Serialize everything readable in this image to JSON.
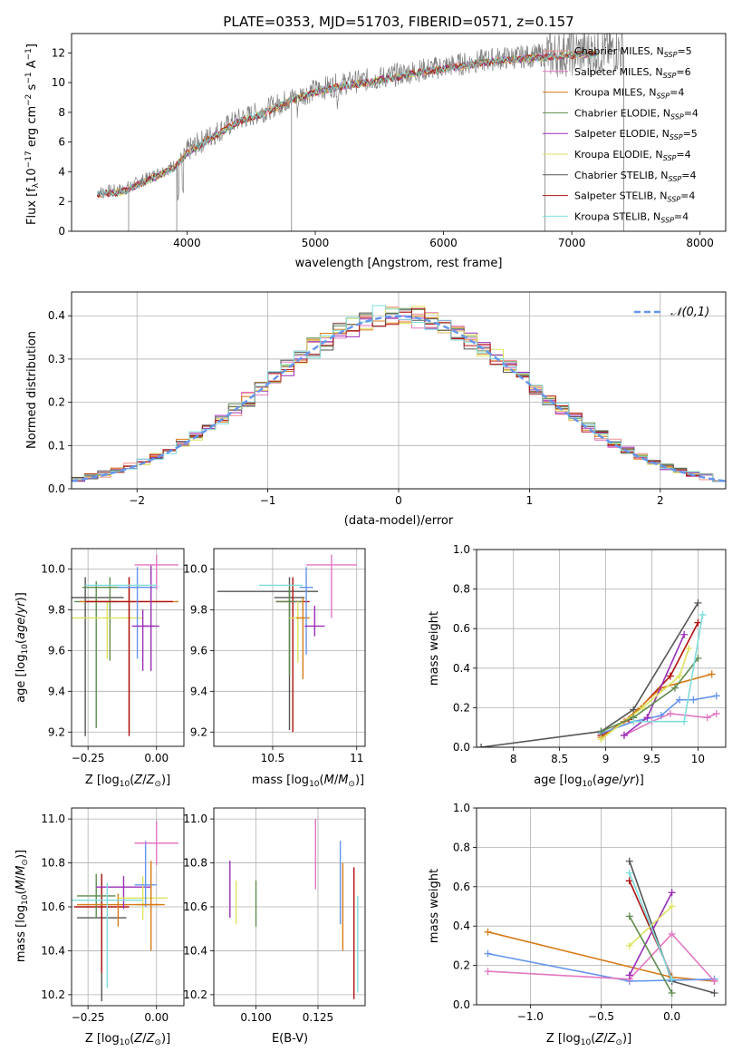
{
  "chart_data": [
    {
      "type": "line",
      "title": "PLATE=0353, MJD=51703, FIBERID=0571, z=0.157",
      "xlabel": "wavelength [Angstrom, rest frame]",
      "ylabel": "Flux [f_λ 10^-17 erg cm^-2 s^-1 A^-1]",
      "xlim": [
        3100,
        8200
      ],
      "ylim": [
        0,
        13.3
      ],
      "xticks": [
        4000,
        5000,
        6000,
        7000,
        8000
      ],
      "yticks": [
        0,
        2,
        4,
        6,
        8,
        10,
        12
      ],
      "legend_position": "top-right",
      "series": [
        {
          "name": "Chabrier MILES, N_SSP=5",
          "color": "#ED8B8B"
        },
        {
          "name": "Salpeter MILES, N_SSP=6",
          "color": "#E377C2"
        },
        {
          "name": "Kroupa MILES, N_SSP=4",
          "color": "#D87B17"
        },
        {
          "name": "Chabrier ELODIE, N_SSP=4",
          "color": "#5E8C4E"
        },
        {
          "name": "Salpeter ELODIE, N_SSP=5",
          "color": "#9A2FB7"
        },
        {
          "name": "Kroupa ELODIE, N_SSP=4",
          "color": "#DDE35E"
        },
        {
          "name": "Chabrier STELIB, N_SSP=4",
          "color": "#555555"
        },
        {
          "name": "Salpeter STELIB, N_SSP=4",
          "color": "#B01010"
        },
        {
          "name": "Kroupa STELIB, N_SSP=4",
          "color": "#7FDDDD"
        }
      ],
      "continuum": {
        "x": [
          3300,
          3500,
          3700,
          3900,
          4000,
          4200,
          4400,
          4600,
          4800,
          5000,
          5200,
          5500,
          5800,
          6100,
          6400,
          6700,
          7000,
          7400
        ],
        "y": [
          2.6,
          2.8,
          3.6,
          4.4,
          5.4,
          6.5,
          7.5,
          8.1,
          8.9,
          9.5,
          9.9,
          10.3,
          10.8,
          11.2,
          11.6,
          11.8,
          12.0,
          12.2
        ]
      },
      "data_color": "#808080"
    },
    {
      "type": "step",
      "xlabel": "(data-model)/error",
      "ylabel": "Normed distribution",
      "xlim": [
        -2.5,
        2.5
      ],
      "ylim": [
        0,
        0.455
      ],
      "xticks": [
        -2,
        -1,
        0,
        1,
        2
      ],
      "yticks": [
        0.0,
        0.1,
        0.2,
        0.3,
        0.4
      ],
      "reference_curve": {
        "name": "𝒩(0,1)",
        "color": "#6495ED",
        "style": "dashed"
      },
      "legend_position": "top-right",
      "bins": 50
    },
    {
      "type": "scatter",
      "xlabel": "Z [log10(Z/Z⊙)]",
      "ylabel": "age [log10(age/yr)]",
      "xlim": [
        -0.31,
        0.1
      ],
      "ylim": [
        9.13,
        10.1
      ],
      "xticks": [
        -0.25,
        0.0
      ],
      "xticklabels": [
        "−0.25",
        "0.00"
      ],
      "yticks": [
        9.2,
        9.4,
        9.6,
        9.8,
        10.0
      ],
      "points": [
        {
          "x": -0.26,
          "y": 9.86,
          "xerr": 0.14,
          "yerr": [
            0.68,
            0.1
          ],
          "color": "#555555"
        },
        {
          "x": -0.22,
          "y": 9.84,
          "xerr": 0.08,
          "yerr": [
            0.62,
            0.1
          ],
          "color": "#5E8C4E"
        },
        {
          "x": -0.17,
          "y": 9.91,
          "xerr": 0.1,
          "yerr": [
            0.36,
            0.05
          ],
          "color": "#5E8C4E"
        },
        {
          "x": -0.18,
          "y": 9.76,
          "xerr": 0.13,
          "yerr": [
            0.2,
            0.08
          ],
          "color": "#DDE35E"
        },
        {
          "x": -0.1,
          "y": 9.84,
          "xerr": 0.18,
          "yerr": [
            0.64,
            0.12
          ],
          "color": "#D87B17"
        },
        {
          "x": -0.1,
          "y": 9.84,
          "xerr": 0.16,
          "yerr": [
            0.66,
            0.12
          ],
          "color": "#B01010"
        },
        {
          "x": -0.07,
          "y": 9.91,
          "xerr": 0.07,
          "yerr": [
            0.35,
            0.1
          ],
          "color": "#6495ED"
        },
        {
          "x": -0.05,
          "y": 9.72,
          "xerr": 0.04,
          "yerr": [
            0.22,
            0.08
          ],
          "color": "#9A2FB7"
        },
        {
          "x": -0.02,
          "y": 9.72,
          "xerr": 0.03,
          "yerr": [
            0.22,
            0.3
          ],
          "color": "#9A2FB7"
        },
        {
          "x": 0.0,
          "y": 10.02,
          "xerr": 0.08,
          "yerr": [
            0.12,
            0.05
          ],
          "color": "#E377C2"
        },
        {
          "x": -0.13,
          "y": 9.92,
          "xerr": 0.13,
          "yerr": [
            0.0,
            0.0
          ],
          "color": "#7FDDDD"
        }
      ]
    },
    {
      "type": "scatter",
      "xlabel": "mass [log10(M/M⊙)]",
      "xlim": [
        10.15,
        11.05
      ],
      "ylim": [
        9.13,
        10.1
      ],
      "xticks": [
        10.5,
        11.0
      ],
      "yticks": [
        9.2,
        9.4,
        9.6,
        9.8,
        10.0
      ],
      "points": [
        {
          "x": 10.6,
          "y": 9.86,
          "xerr": 0.09,
          "yerr": [
            0.65,
            0.1
          ],
          "color": "#555555"
        },
        {
          "x": 10.47,
          "y": 9.89,
          "xerr": 0.3,
          "yerr": [
            0.0,
            0.0
          ],
          "color": "#555555"
        },
        {
          "x": 10.62,
          "y": 9.84,
          "xerr": 0.1,
          "yerr": [
            0.64,
            0.12
          ],
          "color": "#B01010"
        },
        {
          "x": 10.6,
          "y": 9.84,
          "xerr": 0.08,
          "yerr": [
            0.36,
            0.07
          ],
          "color": "#5E8C4E"
        },
        {
          "x": 10.65,
          "y": 9.76,
          "xerr": 0.05,
          "yerr": [
            0.22,
            0.08
          ],
          "color": "#DDE35E"
        },
        {
          "x": 10.68,
          "y": 9.76,
          "xerr": 0.04,
          "yerr": [
            0.3,
            0.1
          ],
          "color": "#D87B17"
        },
        {
          "x": 10.7,
          "y": 9.91,
          "xerr": 0.04,
          "yerr": [
            0.33,
            0.1
          ],
          "color": "#6495ED"
        },
        {
          "x": 10.75,
          "y": 9.72,
          "xerr": 0.06,
          "yerr": [
            0.05,
            0.1
          ],
          "color": "#9A2FB7"
        },
        {
          "x": 10.85,
          "y": 10.02,
          "xerr": 0.15,
          "yerr": [
            0.26,
            0.05
          ],
          "color": "#E377C2"
        },
        {
          "x": 10.55,
          "y": 9.92,
          "xerr": 0.13,
          "yerr": [
            0.0,
            0.0
          ],
          "color": "#7FDDDD"
        }
      ]
    },
    {
      "type": "line",
      "xlabel": "age [log10(age/yr)]",
      "ylabel": "mass weight",
      "xlim": [
        7.6,
        10.3
      ],
      "ylim": [
        0,
        1
      ],
      "xticks": [
        8.0,
        8.5,
        9.0,
        9.5,
        10.0
      ],
      "yticks": [
        0.0,
        0.2,
        0.4,
        0.6,
        0.8,
        1.0
      ],
      "series": [
        {
          "color": "#555555",
          "x": [
            7.65,
            8.95,
            9.3,
            10.0
          ],
          "y": [
            0.0,
            0.08,
            0.19,
            0.73
          ]
        },
        {
          "color": "#B01010",
          "x": [
            8.95,
            9.25,
            9.7,
            10.0
          ],
          "y": [
            0.06,
            0.14,
            0.36,
            0.63
          ]
        },
        {
          "color": "#D87B17",
          "x": [
            8.95,
            9.2,
            9.6,
            10.15
          ],
          "y": [
            0.05,
            0.13,
            0.3,
            0.37
          ]
        },
        {
          "color": "#6495ED",
          "x": [
            8.95,
            9.3,
            9.6,
            9.8,
            9.95,
            10.2
          ],
          "y": [
            0.07,
            0.13,
            0.16,
            0.24,
            0.24,
            0.26
          ]
        },
        {
          "color": "#E377C2",
          "x": [
            9.2,
            9.5,
            9.7,
            10.1,
            10.2
          ],
          "y": [
            0.06,
            0.13,
            0.17,
            0.15,
            0.17
          ]
        },
        {
          "color": "#9A2FB7",
          "x": [
            9.2,
            9.45,
            9.85
          ],
          "y": [
            0.06,
            0.15,
            0.57
          ]
        },
        {
          "color": "#DDE35E",
          "x": [
            8.95,
            9.4,
            9.8,
            9.9
          ],
          "y": [
            0.04,
            0.2,
            0.36,
            0.5
          ]
        },
        {
          "color": "#5E8C4E",
          "x": [
            8.95,
            9.3,
            9.75,
            10.0
          ],
          "y": [
            0.08,
            0.15,
            0.3,
            0.45
          ]
        },
        {
          "color": "#7FDDDD",
          "x": [
            9.3,
            9.85,
            10.05
          ],
          "y": [
            0.13,
            0.13,
            0.67
          ]
        }
      ]
    },
    {
      "type": "scatter",
      "xlabel": "Z [log10(Z/Z⊙)]",
      "ylabel": "mass [log10(M/M⊙)]",
      "xlim": [
        -0.31,
        0.1
      ],
      "ylim": [
        10.15,
        11.05
      ],
      "xticks": [
        -0.25,
        0.0
      ],
      "xticklabels": [
        "−0.25",
        "0.00"
      ],
      "yticks": [
        10.2,
        10.4,
        10.6,
        10.8,
        11.0
      ],
      "points": [
        {
          "x": -0.2,
          "y": 10.55,
          "xerr": 0.09,
          "yerr": [
            0.38,
            0.2
          ],
          "color": "#555555"
        },
        {
          "x": -0.2,
          "y": 10.6,
          "xerr": 0.1,
          "yerr": [
            0.3,
            0.15
          ],
          "color": "#B01010"
        },
        {
          "x": -0.22,
          "y": 10.65,
          "xerr": 0.07,
          "yerr": [
            0.1,
            0.1
          ],
          "color": "#5E8C4E"
        },
        {
          "x": -0.14,
          "y": 10.61,
          "xerr": 0.15,
          "yerr": [
            0.1,
            0.05
          ],
          "color": "#D87B17"
        },
        {
          "x": -0.12,
          "y": 10.69,
          "xerr": 0.1,
          "yerr": [
            0.1,
            0.05
          ],
          "color": "#9A2FB7"
        },
        {
          "x": -0.18,
          "y": 10.63,
          "xerr": 0.13,
          "yerr": [
            0.4,
            0.08
          ],
          "color": "#7FDDDD"
        },
        {
          "x": -0.05,
          "y": 10.64,
          "xerr": 0.09,
          "yerr": [
            0.1,
            0.1
          ],
          "color": "#DDE35E"
        },
        {
          "x": -0.04,
          "y": 10.7,
          "xerr": 0.04,
          "yerr": [
            0.1,
            0.2
          ],
          "color": "#6495ED"
        },
        {
          "x": -0.02,
          "y": 10.61,
          "xerr": 0.05,
          "yerr": [
            0.21,
            0.2
          ],
          "color": "#D87B17"
        },
        {
          "x": 0.0,
          "y": 10.89,
          "xerr": 0.08,
          "yerr": [
            0.1,
            0.1
          ],
          "color": "#E377C2"
        }
      ]
    },
    {
      "type": "scatter",
      "xlabel": "E(B-V)",
      "xlim": [
        0.083,
        0.144
      ],
      "ylim": [
        10.15,
        11.05
      ],
      "xticks": [
        0.1,
        0.125
      ],
      "xticklabels": [
        "0.100",
        "0.125"
      ],
      "yticks": [
        10.2,
        10.4,
        10.6,
        10.8,
        11.0
      ],
      "points": [
        {
          "x": 0.0895,
          "y": 10.68,
          "yerr": [
            0.13,
            0.13
          ],
          "color": "#9A2FB7"
        },
        {
          "x": 0.092,
          "y": 10.62,
          "yerr": [
            0.1,
            0.1
          ],
          "color": "#DDE35E"
        },
        {
          "x": 0.1,
          "y": 10.61,
          "yerr": [
            0.1,
            0.11
          ],
          "color": "#5E8C4E"
        },
        {
          "x": 0.124,
          "y": 10.84,
          "yerr": [
            0.16,
            0.16
          ],
          "color": "#E377C2"
        },
        {
          "x": 0.134,
          "y": 10.71,
          "yerr": [
            0.19,
            0.19
          ],
          "color": "#6495ED"
        },
        {
          "x": 0.135,
          "y": 10.6,
          "yerr": [
            0.2,
            0.2
          ],
          "color": "#D87B17"
        },
        {
          "x": 0.1395,
          "y": 10.48,
          "yerr": [
            0.3,
            0.3
          ],
          "color": "#B01010"
        },
        {
          "x": 0.141,
          "y": 10.43,
          "yerr": [
            0.22,
            0.22
          ],
          "color": "#7FDDDD"
        }
      ]
    },
    {
      "type": "line",
      "xlabel": "Z [log10(Z/Z⊙)]",
      "ylabel": "mass weight",
      "xlim": [
        -1.38,
        0.38
      ],
      "ylim": [
        0,
        1
      ],
      "xticks": [
        -1.0,
        -0.5,
        0.0
      ],
      "xticklabels": [
        "−1.0",
        "−0.5",
        "0.0"
      ],
      "yticks": [
        0.0,
        0.2,
        0.4,
        0.6,
        0.8,
        1.0
      ],
      "series": [
        {
          "color": "#555555",
          "x": [
            -0.3,
            0.0,
            0.3
          ],
          "y": [
            0.73,
            0.12,
            0.06
          ]
        },
        {
          "color": "#B01010",
          "x": [
            -0.3,
            0.0
          ],
          "y": [
            0.63,
            0.14
          ]
        },
        {
          "color": "#D87B17",
          "x": [
            -1.3,
            0.0,
            0.3
          ],
          "y": [
            0.37,
            0.14,
            0.12
          ]
        },
        {
          "color": "#6495ED",
          "x": [
            -1.3,
            -0.3,
            0.3
          ],
          "y": [
            0.26,
            0.12,
            0.13
          ]
        },
        {
          "color": "#E377C2",
          "x": [
            -1.3,
            -0.3,
            0.0,
            0.3
          ],
          "y": [
            0.17,
            0.13,
            0.36,
            0.12
          ]
        },
        {
          "color": "#9A2FB7",
          "x": [
            -0.3,
            0.0
          ],
          "y": [
            0.15,
            0.57
          ]
        },
        {
          "color": "#DDE35E",
          "x": [
            -0.3,
            0.0
          ],
          "y": [
            0.3,
            0.5
          ]
        },
        {
          "color": "#5E8C4E",
          "x": [
            -0.3,
            0.0
          ],
          "y": [
            0.45,
            0.06
          ]
        },
        {
          "color": "#7FDDDD",
          "x": [
            -0.3,
            0.0
          ],
          "y": [
            0.67,
            0.13
          ]
        }
      ]
    }
  ]
}
